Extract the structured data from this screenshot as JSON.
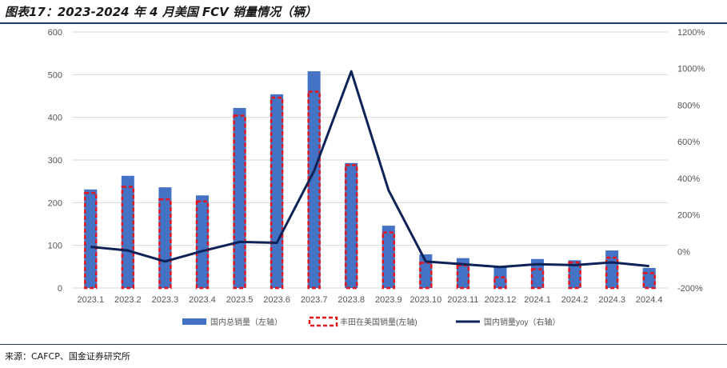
{
  "header": {
    "title": "图表17：2023-2024 年 4 月美国 FCV 销量情况（辆）"
  },
  "footer": {
    "source": "来源：CAFCP、国金证券研究所"
  },
  "chart_data": {
    "type": "bar",
    "categories": [
      "2023.1",
      "2023.2",
      "2023.3",
      "2023.4",
      "2023.5",
      "2023.6",
      "2023.7",
      "2023.8",
      "2023.9",
      "2023.10",
      "2023.11",
      "2023.12",
      "2024.1",
      "2024.2",
      "2024.3",
      "2024.4"
    ],
    "y_left": {
      "ticks": [
        "0",
        "100",
        "200",
        "300",
        "400",
        "500",
        "600"
      ],
      "ylim": [
        0,
        600
      ]
    },
    "y_right": {
      "ticks": [
        "-200%",
        "0%",
        "200%",
        "400%",
        "600%",
        "800%",
        "1000%",
        "1200%"
      ],
      "ylim": [
        -200,
        1200
      ]
    },
    "series": [
      {
        "name": "国内总销量（左轴）",
        "type": "bar",
        "axis": "left",
        "color": "#4472c4",
        "values": [
          231,
          263,
          236,
          217,
          422,
          454,
          508,
          293,
          146,
          79,
          70,
          49,
          68,
          65,
          88,
          47
        ]
      },
      {
        "name": "丰田在美国销量(左轴)",
        "type": "bar-outline",
        "axis": "left",
        "color": "#e8141b",
        "values": [
          223,
          237,
          208,
          203,
          404,
          446,
          460,
          288,
          130,
          59,
          53,
          25,
          44,
          60,
          71,
          35
        ]
      },
      {
        "name": "国内销量yoy（右轴）",
        "type": "line",
        "axis": "right",
        "color": "#0d2257",
        "values": [
          25,
          5,
          -55,
          2,
          52,
          47,
          440,
          985,
          335,
          -55,
          -70,
          -85,
          -70,
          -75,
          -60,
          -80
        ]
      }
    ],
    "grid": true,
    "legend_position": "bottom"
  }
}
